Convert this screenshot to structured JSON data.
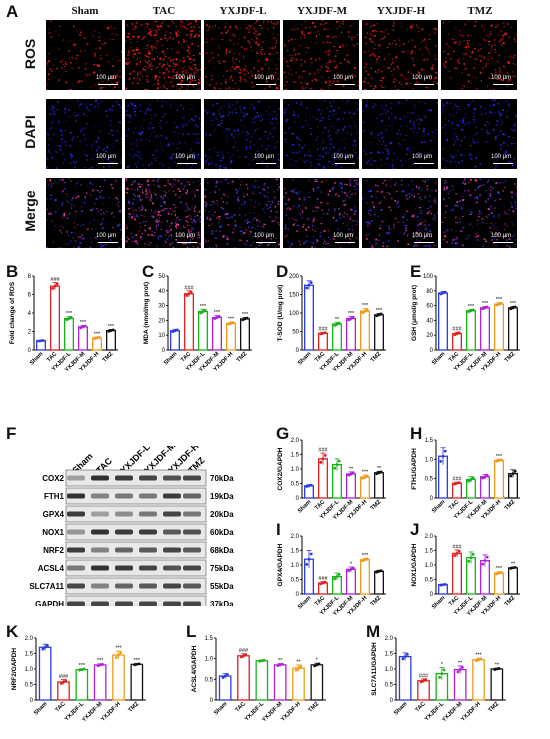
{
  "panel_A": {
    "letter": "A",
    "columns": [
      "Sham",
      "TAC",
      "YXJDF-L",
      "YXJDF-M",
      "YXJDF-H",
      "TMZ"
    ],
    "rows": [
      "ROS",
      "DAPI",
      "Merge"
    ],
    "scale_label": "100 μm"
  },
  "panel_F": {
    "letter": "F",
    "lanes": [
      "Sham",
      "TAC",
      "YXJDF-L",
      "YXJDF-M",
      "YXJDF-H",
      "TMZ"
    ],
    "bands": [
      {
        "protein": "COX2",
        "kda": "70kDa"
      },
      {
        "protein": "FTH1",
        "kda": "19kDa"
      },
      {
        "protein": "GPX4",
        "kda": "20kDa"
      },
      {
        "protein": "NOX1",
        "kda": "60kDa"
      },
      {
        "protein": "NRF2",
        "kda": "68kDa"
      },
      {
        "protein": "ACSL4",
        "kda": "75kDa"
      },
      {
        "protein": "SLC7A11",
        "kda": "55kDa"
      },
      {
        "protein": "GAPDH",
        "kda": "37kDa"
      }
    ]
  },
  "chart_data": [
    {
      "panel": "B",
      "type": "bar",
      "categories": [
        "Sham",
        "TAC",
        "YXJDF-L",
        "YXJDF-M",
        "YXJDF-H",
        "TMZ"
      ],
      "values": [
        1.0,
        6.9,
        3.4,
        2.5,
        1.3,
        2.1
      ],
      "errors": [
        0.05,
        0.4,
        0.2,
        0.15,
        0.12,
        0.12
      ],
      "ylabel": "Fold change of ROS",
      "ylim": [
        0,
        8
      ],
      "yticks": [
        0,
        2,
        4,
        6,
        8
      ],
      "sig": [
        "",
        "###",
        "***",
        "***",
        "***",
        "***"
      ]
    },
    {
      "panel": "C",
      "type": "bar",
      "categories": [
        "Sham",
        "TAC",
        "YXJDF-L",
        "YXJDF-M",
        "YXJDF-H",
        "TMZ"
      ],
      "values": [
        13,
        38,
        26,
        22,
        18,
        21
      ],
      "errors": [
        1,
        2,
        1.5,
        1.2,
        1,
        1
      ],
      "ylabel": "MDA (nmol/mg prot)",
      "ylim": [
        0,
        50
      ],
      "yticks": [
        0,
        10,
        20,
        30,
        40,
        50
      ],
      "sig": [
        "",
        "###",
        "***",
        "***",
        "***",
        "***"
      ]
    },
    {
      "panel": "D",
      "type": "bar",
      "categories": [
        "Sham",
        "TAC",
        "YXJDF-L",
        "YXJDF-M",
        "YXJDF-H",
        "TMZ"
      ],
      "values": [
        175,
        45,
        70,
        85,
        105,
        95
      ],
      "errors": [
        12,
        3,
        5,
        6,
        7,
        4
      ],
      "ylabel": "T-SOD (U/mg prot)",
      "ylim": [
        0,
        200
      ],
      "yticks": [
        0,
        50,
        100,
        150,
        200
      ],
      "sig": [
        "",
        "###",
        "**",
        "***",
        "***",
        "***"
      ]
    },
    {
      "panel": "E",
      "type": "bar",
      "categories": [
        "Sham",
        "TAC",
        "YXJDF-L",
        "YXJDF-M",
        "YXJDF-H",
        "TMZ"
      ],
      "values": [
        77,
        22,
        53,
        57,
        62,
        57
      ],
      "errors": [
        2,
        2,
        2,
        2,
        2,
        2
      ],
      "ylabel": "GSH (μmol/g prot)",
      "ylim": [
        0,
        100
      ],
      "yticks": [
        0,
        20,
        40,
        60,
        80,
        100
      ],
      "sig": [
        "",
        "###",
        "***",
        "***",
        "***",
        "***"
      ]
    },
    {
      "panel": "G",
      "type": "bar",
      "categories": [
        "Sham",
        "TAC",
        "YXJDF-L",
        "YXJDF-M",
        "YXJDF-H",
        "TMZ"
      ],
      "values": [
        0.42,
        1.35,
        1.15,
        0.83,
        0.72,
        0.87
      ],
      "errors": [
        0.04,
        0.2,
        0.2,
        0.07,
        0.07,
        0.05
      ],
      "ylabel": "COX2/GAPDH",
      "ylim": [
        0,
        2.0
      ],
      "yticks": [
        0,
        0.5,
        1.0,
        1.5,
        2.0
      ],
      "sig": [
        "",
        "###",
        "",
        "**",
        "***",
        "**"
      ]
    },
    {
      "panel": "H",
      "type": "bar",
      "categories": [
        "Sham",
        "TAC",
        "YXJDF-L",
        "YXJDF-M",
        "YXJDF-H",
        "TMZ"
      ],
      "values": [
        1.08,
        0.38,
        0.48,
        0.55,
        0.97,
        0.63
      ],
      "errors": [
        0.22,
        0.03,
        0.07,
        0.06,
        0.03,
        0.1
      ],
      "ylabel": "FTH1/GAPDH",
      "ylim": [
        0,
        1.5
      ],
      "yticks": [
        0,
        0.5,
        1.0,
        1.5
      ],
      "sig": [
        "",
        "###",
        "",
        "",
        "***",
        ""
      ]
    },
    {
      "panel": "I",
      "type": "bar",
      "categories": [
        "Sham",
        "TAC",
        "YXJDF-L",
        "YXJDF-M",
        "YXJDF-H",
        "TMZ"
      ],
      "values": [
        1.2,
        0.38,
        0.6,
        0.85,
        1.18,
        0.78
      ],
      "errors": [
        0.3,
        0.05,
        0.12,
        0.08,
        0.05,
        0.04
      ],
      "ylabel": "GPX4/GAPDH",
      "ylim": [
        0,
        2.0
      ],
      "yticks": [
        0,
        0.5,
        1.0,
        1.5,
        2.0
      ],
      "sig": [
        "",
        "###",
        "",
        "*",
        "***",
        ""
      ]
    },
    {
      "panel": "J",
      "type": "bar",
      "categories": [
        "Sham",
        "TAC",
        "YXJDF-L",
        "YXJDF-M",
        "YXJDF-H",
        "TMZ"
      ],
      "values": [
        0.32,
        1.4,
        1.25,
        1.15,
        0.72,
        0.9
      ],
      "errors": [
        0.02,
        0.12,
        0.2,
        0.2,
        0.05,
        0.03
      ],
      "ylabel": "NOX1/GAPDH",
      "ylim": [
        0,
        2.0
      ],
      "yticks": [
        0,
        0.5,
        1.0,
        1.5,
        2.0
      ],
      "sig": [
        "",
        "###",
        "",
        "",
        "***",
        "**"
      ]
    },
    {
      "panel": "K",
      "type": "bar",
      "categories": [
        "Sham",
        "TAC",
        "YXJDF-L",
        "YXJDF-M",
        "YXJDF-H",
        "TMZ"
      ],
      "values": [
        1.7,
        0.58,
        0.98,
        1.13,
        1.45,
        1.15
      ],
      "errors": [
        0.1,
        0.08,
        0.03,
        0.04,
        0.13,
        0.03
      ],
      "ylabel": "NRF2/GAPDH",
      "ylim": [
        0,
        2.0
      ],
      "yticks": [
        0,
        0.5,
        1.0,
        1.5,
        2.0
      ],
      "sig": [
        "",
        "###",
        "***",
        "***",
        "***",
        "***"
      ]
    },
    {
      "panel": "L",
      "type": "bar",
      "categories": [
        "Sham",
        "TAC",
        "YXJDF-L",
        "YXJDF-M",
        "YXJDF-H",
        "TMZ"
      ],
      "values": [
        0.58,
        1.07,
        0.95,
        0.85,
        0.77,
        0.85
      ],
      "errors": [
        0.06,
        0.05,
        0.02,
        0.03,
        0.08,
        0.04
      ],
      "ylabel": "ACSL4/GAPDH",
      "ylim": [
        0,
        1.5
      ],
      "yticks": [
        0,
        0.5,
        1.0,
        1.5
      ],
      "sig": [
        "",
        "###",
        "",
        "**",
        "**",
        "*"
      ]
    },
    {
      "panel": "M",
      "type": "bar",
      "categories": [
        "Sham",
        "TAC",
        "YXJDF-L",
        "YXJDF-M",
        "YXJDF-H",
        "TMZ"
      ],
      "values": [
        1.4,
        0.62,
        0.85,
        0.98,
        1.3,
        1.0
      ],
      "errors": [
        0.12,
        0.06,
        0.2,
        0.12,
        0.05,
        0.03
      ],
      "ylabel": "SLC7A11/GAPDH",
      "ylim": [
        0,
        2.0
      ],
      "yticks": [
        0,
        0.5,
        1.0,
        1.5,
        2.0
      ],
      "sig": [
        "",
        "###",
        "*",
        "**",
        "***",
        "**"
      ]
    }
  ],
  "colors": {
    "bars": [
      "#2b3be0",
      "#e02020",
      "#19b119",
      "#b020d8",
      "#f09a1a",
      "#111111"
    ],
    "ros": "#ff2020",
    "dapi": "#2a2aff",
    "merge_a": "#ff3aa0",
    "merge_b": "#3a3aff"
  }
}
